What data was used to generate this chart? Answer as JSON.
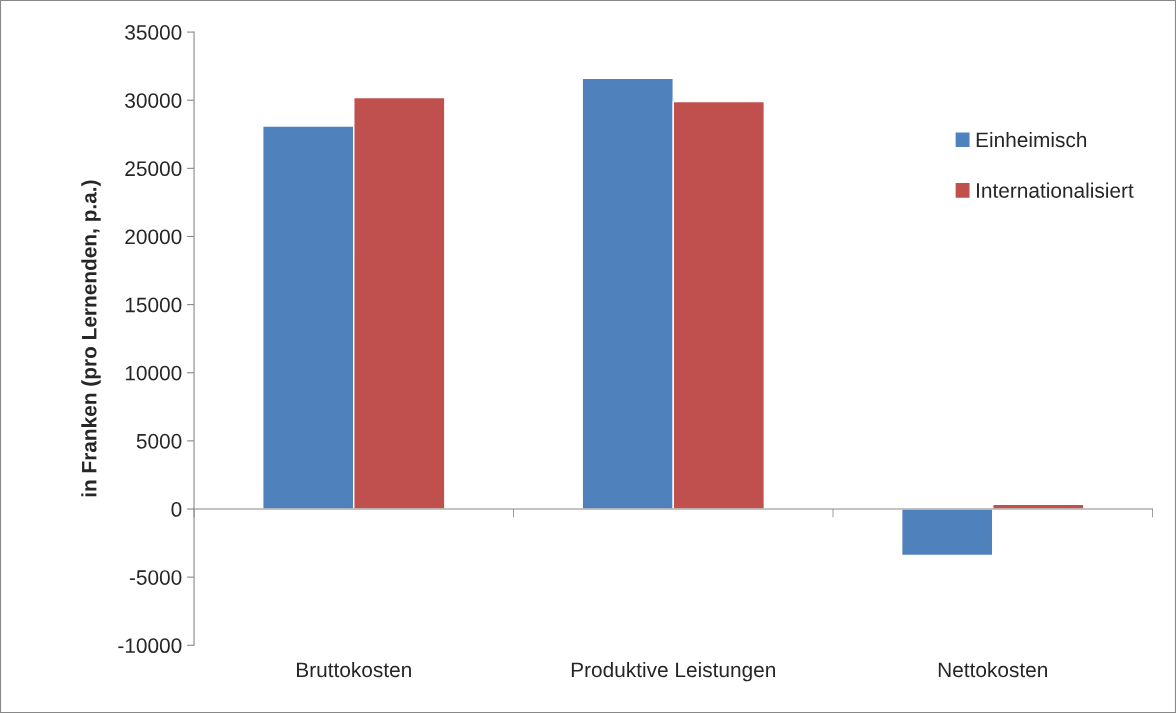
{
  "chart_data": {
    "type": "bar",
    "ylabel": "in Franken (pro Lernenden, p.a.)",
    "categories": [
      "Bruttokosten",
      "Produktive Leistungen",
      "Nettokosten"
    ],
    "series": [
      {
        "name": "Einheimisch",
        "color": "#4f81bd",
        "values": [
          28100,
          31600,
          -3400
        ]
      },
      {
        "name": "Internationalisiert",
        "color": "#c0504d",
        "values": [
          30200,
          29900,
          350
        ]
      }
    ],
    "ylim": [
      -10000,
      35000
    ],
    "yticks": [
      -10000,
      -5000,
      0,
      5000,
      10000,
      15000,
      20000,
      25000,
      30000,
      35000
    ],
    "legend": "right"
  }
}
